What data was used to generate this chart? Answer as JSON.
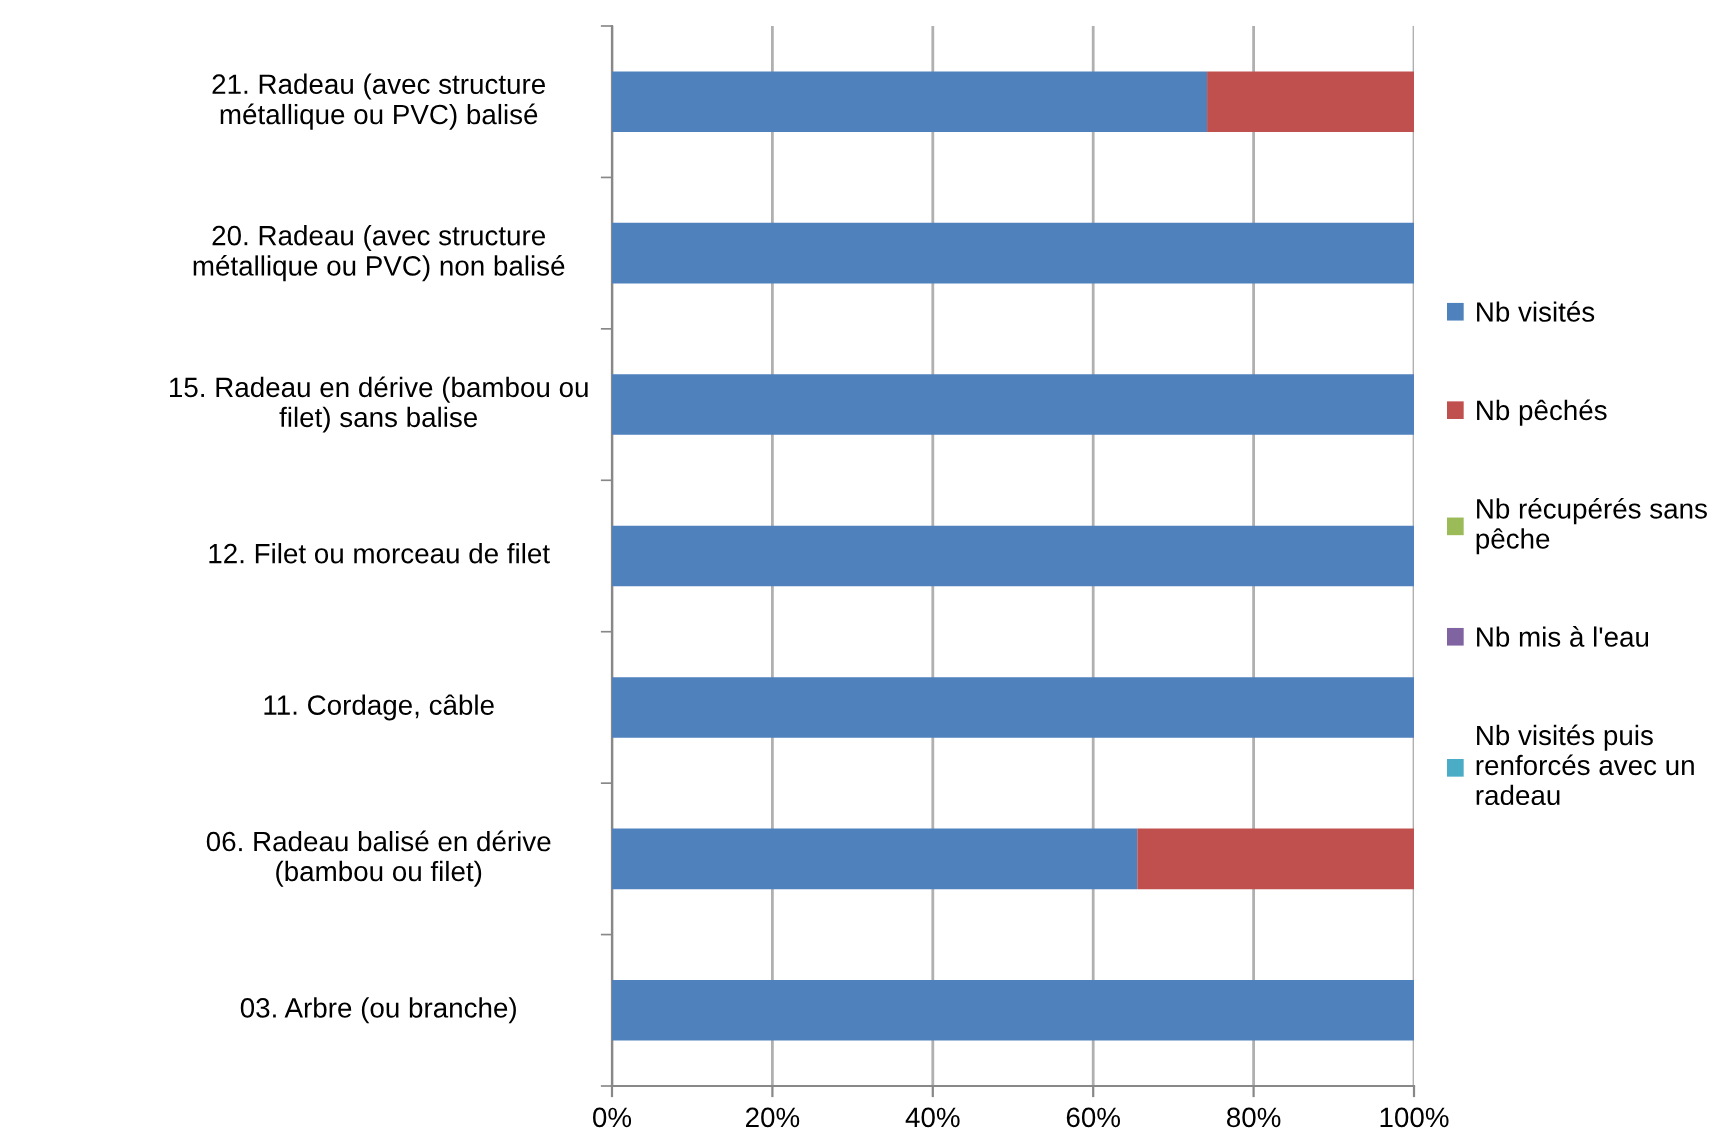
{
  "chart_data": {
    "type": "bar",
    "orientation": "horizontal",
    "stacked": true,
    "categories": [
      "21. Radeau (avec structure métallique ou PVC) balisé",
      "20. Radeau (avec structure métallique ou PVC) non balisé",
      "15. Radeau en dérive (bambou ou filet) sans balise",
      "12. Filet ou morceau de filet",
      "11. Cordage, câble",
      "06. Radeau balisé en dérive (bambou ou filet)",
      "03. Arbre (ou branche)"
    ],
    "series": [
      {
        "name": "Nb visités",
        "color": "#4f81bd",
        "values": [
          74.2,
          100,
          100,
          100,
          100,
          65.5,
          100
        ]
      },
      {
        "name": "Nb pêchés",
        "color": "#c0504d",
        "values": [
          25.8,
          0,
          0,
          0,
          0,
          34.5,
          0
        ]
      },
      {
        "name": "Nb récupérés sans pêche",
        "color": "#9bbb59",
        "values": [
          0,
          0,
          0,
          0,
          0,
          0,
          0
        ]
      },
      {
        "name": "Nb mis à l'eau",
        "color": "#8064a2",
        "values": [
          0,
          0,
          0,
          0,
          0,
          0,
          0
        ]
      },
      {
        "name": "Nb visités puis renforcés avec un radeau",
        "color": "#4bacc6",
        "values": [
          0,
          0,
          0,
          0,
          0,
          0,
          0
        ]
      }
    ],
    "xlim": [
      0,
      100
    ],
    "xticks": [
      {
        "value": 0,
        "label": "0%"
      },
      {
        "value": 20,
        "label": "20%"
      },
      {
        "value": 40,
        "label": "40%"
      },
      {
        "value": 60,
        "label": "60%"
      },
      {
        "value": 80,
        "label": "80%"
      },
      {
        "value": 100,
        "label": "100%"
      }
    ],
    "grid": "x",
    "legend": "right"
  }
}
